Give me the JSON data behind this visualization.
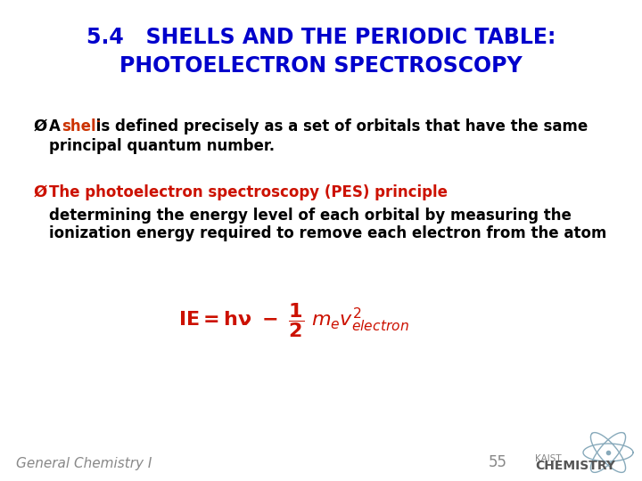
{
  "title_line1": "5.4   SHELLS AND THE PERIODIC TABLE:",
  "title_line2": "PHOTOELECTRON SPECTROSCOPY",
  "title_color": "#0000CC",
  "title_fontsize": 17,
  "bullet1_shell_color": "#CC3300",
  "bullet1_line2": "principal quantum number.",
  "bullet1_fontsize": 12,
  "bullet2_line1_color": "#CC1100",
  "bullet2_line1": "The photoelectron spectroscopy (PES) principle",
  "bullet2_line2": "determining the energy level of each orbital by measuring the",
  "bullet2_line3": "ionization energy required to remove each electron from the atom",
  "equation_color": "#CC1100",
  "footer_left": "General Chemistry I",
  "footer_page": "55",
  "footer_color": "#888888",
  "footer_fontsize": 11,
  "background_color": "#FFFFFF",
  "text_color": "#000000",
  "bullet_color": "#000000",
  "bullet2_bullet_color": "#CC1100"
}
